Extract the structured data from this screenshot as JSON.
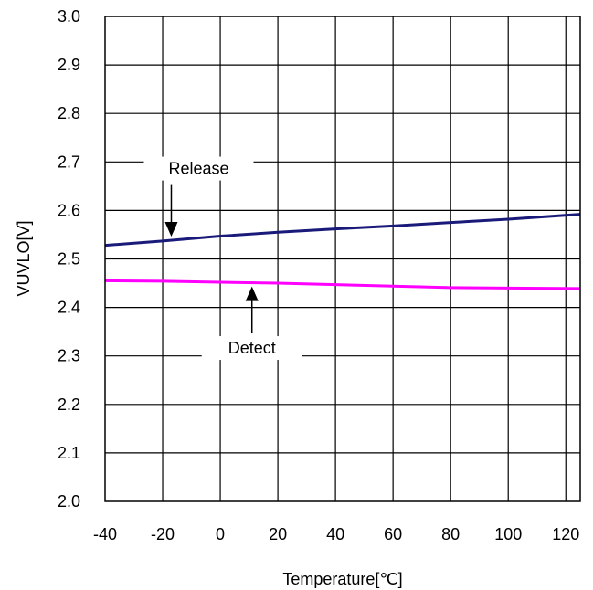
{
  "chart_data": {
    "type": "line",
    "title": "",
    "xlabel": "Temperature[℃]",
    "ylabel": "VUVLO[V]",
    "xlim": [
      -40,
      125
    ],
    "ylim": [
      2.0,
      3.0
    ],
    "x_ticks": [
      "-40",
      "-20",
      "0",
      "20",
      "40",
      "60",
      "80",
      "100",
      "120"
    ],
    "y_ticks": [
      "2.0",
      "2.1",
      "2.2",
      "2.3",
      "2.4",
      "2.5",
      "2.6",
      "2.7",
      "2.8",
      "2.9",
      "3.0"
    ],
    "grid": true,
    "series": [
      {
        "name": "Release",
        "color": "#1a1a7a",
        "x": [
          -40,
          -20,
          0,
          20,
          40,
          60,
          80,
          100,
          125
        ],
        "y": [
          2.528,
          2.537,
          2.547,
          2.555,
          2.562,
          2.568,
          2.575,
          2.582,
          2.592
        ]
      },
      {
        "name": "Detect",
        "color": "#ff00ff",
        "x": [
          -40,
          -20,
          0,
          20,
          40,
          60,
          80,
          100,
          125
        ],
        "y": [
          2.455,
          2.454,
          2.452,
          2.45,
          2.447,
          2.444,
          2.441,
          2.44,
          2.439
        ]
      }
    ],
    "annotations": [
      {
        "text": "Release",
        "series": "Release",
        "arrow_x": -17
      },
      {
        "text": "Detect",
        "series": "Detect",
        "arrow_x": 11
      }
    ]
  }
}
